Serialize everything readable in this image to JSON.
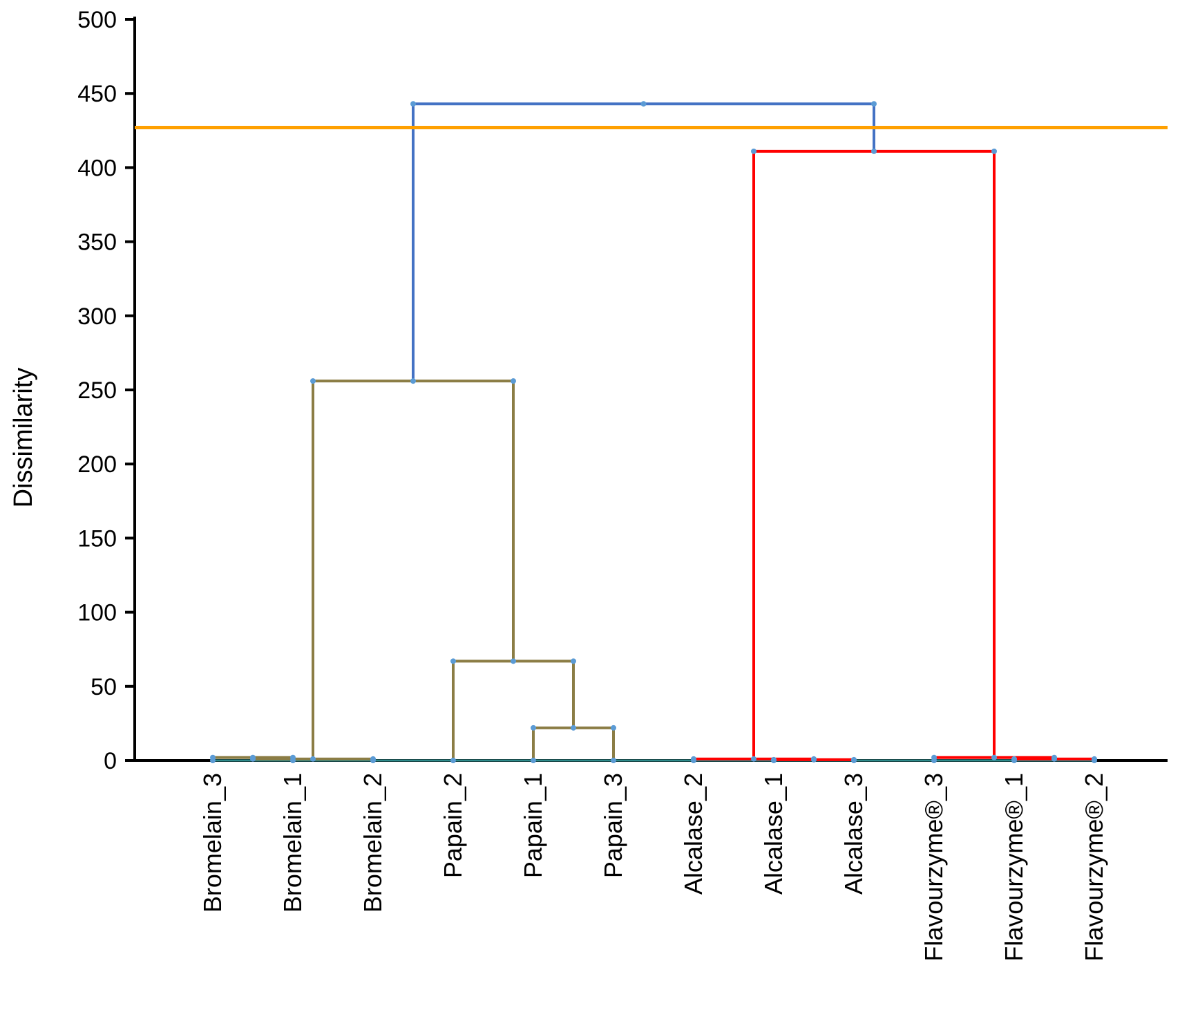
{
  "chart_data": {
    "type": "dendrogram",
    "title": "",
    "xlabel": "",
    "ylabel": "Dissimilarity",
    "ylim": [
      0,
      500
    ],
    "yticks": [
      0,
      50,
      100,
      150,
      200,
      250,
      300,
      350,
      400,
      450,
      500
    ],
    "leaves": [
      "Bromelain_3",
      "Bromelain_1",
      "Bromelain_2",
      "Papain_2",
      "Papain_1",
      "Papain_3",
      "Alcalase_2",
      "Alcalase_1",
      "Alcalase_3",
      "Flavourzyme®_3",
      "Flavourzyme®_1",
      "Flavourzyme®_2"
    ],
    "cut_line": {
      "value": 427,
      "color": "#FFA000"
    },
    "colors": {
      "root": "#4472C4",
      "cluster_1": "#8B7D45",
      "cluster_2": "#FF0000",
      "baseline": "#2E8B8B",
      "axis": "#000000"
    },
    "merges": [
      {
        "id": "m1",
        "left": "Bromelain_3",
        "right": "Bromelain_1",
        "height": 2,
        "color": "cluster_1"
      },
      {
        "id": "m2",
        "left": "m1",
        "right": "Bromelain_2",
        "height": 1,
        "color": "cluster_1"
      },
      {
        "id": "m3",
        "left": "Papain_1",
        "right": "Papain_3",
        "height": 22,
        "color": "cluster_1"
      },
      {
        "id": "m4",
        "left": "Papain_2",
        "right": "m3",
        "height": 67,
        "color": "cluster_1"
      },
      {
        "id": "m5",
        "left": "m2",
        "right": "m4",
        "height": 256,
        "color": "cluster_1"
      },
      {
        "id": "m6",
        "left": "Alcalase_1",
        "right": "Alcalase_3",
        "height": 0.5,
        "color": "cluster_2"
      },
      {
        "id": "m7",
        "left": "Alcalase_2",
        "right": "m6",
        "height": 1,
        "color": "cluster_2"
      },
      {
        "id": "m8",
        "left": "Flavourzyme®_1",
        "right": "Flavourzyme®_2",
        "height": 1,
        "color": "cluster_2"
      },
      {
        "id": "m9",
        "left": "Flavourzyme®_3",
        "right": "m8",
        "height": 2,
        "color": "cluster_2"
      },
      {
        "id": "m10",
        "left": "m7",
        "right": "m9",
        "height": 411,
        "color": "cluster_2"
      },
      {
        "id": "m11",
        "left": "m5",
        "right": "m10",
        "height": 443,
        "color": "root"
      }
    ]
  }
}
